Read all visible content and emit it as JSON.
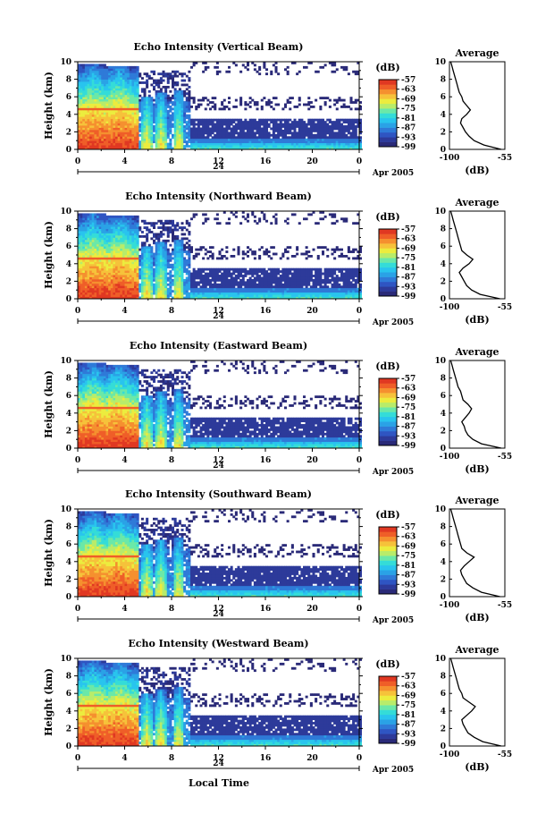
{
  "figure": {
    "xlabel": "Local Time"
  },
  "colors": {
    "colormap": [
      "#2a2a78",
      "#2d3a9a",
      "#2f55c2",
      "#2f7ad8",
      "#2aa2e6",
      "#29c4ee",
      "#34dcd8",
      "#6be8a8",
      "#b8ec6a",
      "#ecec3e",
      "#f6c23a",
      "#f5902f",
      "#ef5e28",
      "#e03822"
    ]
  },
  "chart_data": [
    {
      "type": "heatmap",
      "title": "Echo Intensity (Vertical Beam)",
      "ylabel": "Height (km)",
      "ylim": [
        0,
        10
      ],
      "yticks": [
        "0",
        "2",
        "4",
        "6",
        "8",
        "10"
      ],
      "xlim": [
        0,
        24
      ],
      "xticks": [
        "0",
        "4",
        "8",
        "12",
        "16",
        "20",
        "0"
      ],
      "day_label": "24",
      "date_label": "Apr 2005",
      "colorbar": {
        "unit": "(dB)",
        "ticks": [
          "-57",
          "-63",
          "-69",
          "-75",
          "-81",
          "-87",
          "-93",
          "-99"
        ],
        "range": [
          -99,
          -57
        ]
      },
      "profile": {
        "title": "Average",
        "xlabel": "(dB)",
        "xticks": [
          "-100",
          "-55"
        ],
        "yticks": [
          "0",
          "2",
          "4",
          "6",
          "8",
          "10"
        ],
        "xlim": [
          -100,
          -55
        ],
        "heights": [
          0,
          0.5,
          1,
          1.5,
          2,
          2.5,
          3,
          3.5,
          4,
          4.5,
          5,
          5.5,
          6,
          6.5,
          7,
          7.5,
          8,
          8.5,
          9,
          9.5,
          10
        ],
        "values": [
          -58,
          -72,
          -80,
          -84,
          -87,
          -89,
          -91,
          -90,
          -86,
          -83,
          -86,
          -89,
          -90,
          -92,
          -93,
          -94,
          -95,
          -96,
          -97,
          -98,
          -99
        ]
      }
    },
    {
      "type": "heatmap",
      "title": "Echo Intensity (Northward Beam)",
      "ylabel": "Height (km)",
      "ylim": [
        0,
        10
      ],
      "yticks": [
        "0",
        "2",
        "4",
        "6",
        "8",
        "10"
      ],
      "xlim": [
        0,
        24
      ],
      "xticks": [
        "0",
        "4",
        "8",
        "12",
        "16",
        "20",
        "0"
      ],
      "day_label": "24",
      "date_label": "Apr 2005",
      "colorbar": {
        "unit": "(dB)",
        "ticks": [
          "-57",
          "-63",
          "-69",
          "-75",
          "-81",
          "-87",
          "-93",
          "-99"
        ],
        "range": [
          -99,
          -57
        ]
      },
      "profile": {
        "title": "Average",
        "xlabel": "(dB)",
        "xticks": [
          "-100",
          "-55"
        ],
        "yticks": [
          "0",
          "2",
          "4",
          "6",
          "8",
          "10"
        ],
        "xlim": [
          -100,
          -55
        ],
        "heights": [
          0,
          0.5,
          1,
          1.5,
          2,
          2.5,
          3,
          3.5,
          4,
          4.5,
          5,
          5.5,
          6,
          6.5,
          7,
          7.5,
          8,
          8.5,
          9,
          9.5,
          10
        ],
        "values": [
          -59,
          -75,
          -82,
          -86,
          -88,
          -90,
          -92,
          -89,
          -84,
          -81,
          -86,
          -90,
          -91,
          -92,
          -93,
          -94,
          -95,
          -96,
          -97,
          -98,
          -99
        ]
      }
    },
    {
      "type": "heatmap",
      "title": "Echo Intensity (Eastward Beam)",
      "ylabel": "Height (km)",
      "ylim": [
        0,
        10
      ],
      "yticks": [
        "0",
        "2",
        "4",
        "6",
        "8",
        "10"
      ],
      "xlim": [
        0,
        24
      ],
      "xticks": [
        "0",
        "4",
        "8",
        "12",
        "16",
        "20",
        "0"
      ],
      "day_label": "24",
      "date_label": "Apr 2005",
      "colorbar": {
        "unit": "(dB)",
        "ticks": [
          "-57",
          "-63",
          "-69",
          "-75",
          "-81",
          "-87",
          "-93",
          "-99"
        ],
        "range": [
          -99,
          -57
        ]
      },
      "profile": {
        "title": "Average",
        "xlabel": "(dB)",
        "xticks": [
          "-100",
          "-55"
        ],
        "yticks": [
          "0",
          "2",
          "4",
          "6",
          "8",
          "10"
        ],
        "xlim": [
          -100,
          -55
        ],
        "heights": [
          0,
          0.5,
          1,
          1.5,
          2,
          2.5,
          3,
          3.5,
          4,
          4.5,
          5,
          5.5,
          6,
          6.5,
          7,
          7.5,
          8,
          8.5,
          9,
          9.5,
          10
        ],
        "values": [
          -58,
          -74,
          -81,
          -85,
          -87,
          -88,
          -90,
          -87,
          -84,
          -82,
          -85,
          -89,
          -90,
          -91,
          -93,
          -94,
          -95,
          -96,
          -97,
          -98,
          -99
        ]
      }
    },
    {
      "type": "heatmap",
      "title": "Echo Intensity (Southward Beam)",
      "ylabel": "Height (km)",
      "ylim": [
        0,
        10
      ],
      "yticks": [
        "0",
        "2",
        "4",
        "6",
        "8",
        "10"
      ],
      "xlim": [
        0,
        24
      ],
      "xticks": [
        "0",
        "4",
        "8",
        "12",
        "16",
        "20",
        "0"
      ],
      "day_label": "24",
      "date_label": "Apr 2005",
      "colorbar": {
        "unit": "(dB)",
        "ticks": [
          "-57",
          "-63",
          "-69",
          "-75",
          "-81",
          "-87",
          "-93",
          "-99"
        ],
        "range": [
          -99,
          -57
        ]
      },
      "profile": {
        "title": "Average",
        "xlabel": "(dB)",
        "xticks": [
          "-100",
          "-55"
        ],
        "yticks": [
          "0",
          "2",
          "4",
          "6",
          "8",
          "10"
        ],
        "xlim": [
          -100,
          -55
        ],
        "heights": [
          0,
          0.5,
          1,
          1.5,
          2,
          2.5,
          3,
          3.5,
          4,
          4.5,
          5,
          5.5,
          6,
          6.5,
          7,
          7.5,
          8,
          8.5,
          9,
          9.5,
          10
        ],
        "values": [
          -59,
          -74,
          -81,
          -86,
          -88,
          -90,
          -91,
          -88,
          -84,
          -80,
          -86,
          -90,
          -91,
          -92,
          -93,
          -94,
          -95,
          -96,
          -97,
          -98,
          -99
        ]
      }
    },
    {
      "type": "heatmap",
      "title": "Echo Intensity (Westward Beam)",
      "ylabel": "Height (km)",
      "ylim": [
        0,
        10
      ],
      "yticks": [
        "0",
        "2",
        "4",
        "6",
        "8",
        "10"
      ],
      "xlim": [
        0,
        24
      ],
      "xticks": [
        "0",
        "4",
        "8",
        "12",
        "16",
        "20",
        "0"
      ],
      "day_label": "24",
      "date_label": "Apr 2005",
      "colorbar": {
        "unit": "(dB)",
        "ticks": [
          "-57",
          "-63",
          "-69",
          "-75",
          "-81",
          "-87",
          "-93",
          "-99"
        ],
        "range": [
          -99,
          -57
        ]
      },
      "profile": {
        "title": "Average",
        "xlabel": "(dB)",
        "xticks": [
          "-100",
          "-55"
        ],
        "yticks": [
          "0",
          "2",
          "4",
          "6",
          "8",
          "10"
        ],
        "xlim": [
          -100,
          -55
        ],
        "heights": [
          0,
          0.5,
          1,
          1.5,
          2,
          2.5,
          3,
          3.5,
          4,
          4.5,
          5,
          5.5,
          6,
          6.5,
          7,
          7.5,
          8,
          8.5,
          9,
          9.5,
          10
        ],
        "values": [
          -58,
          -73,
          -80,
          -85,
          -87,
          -89,
          -90,
          -86,
          -82,
          -79,
          -84,
          -89,
          -90,
          -92,
          -93,
          -94,
          -95,
          -96,
          -97,
          -98,
          -99
        ]
      }
    }
  ]
}
